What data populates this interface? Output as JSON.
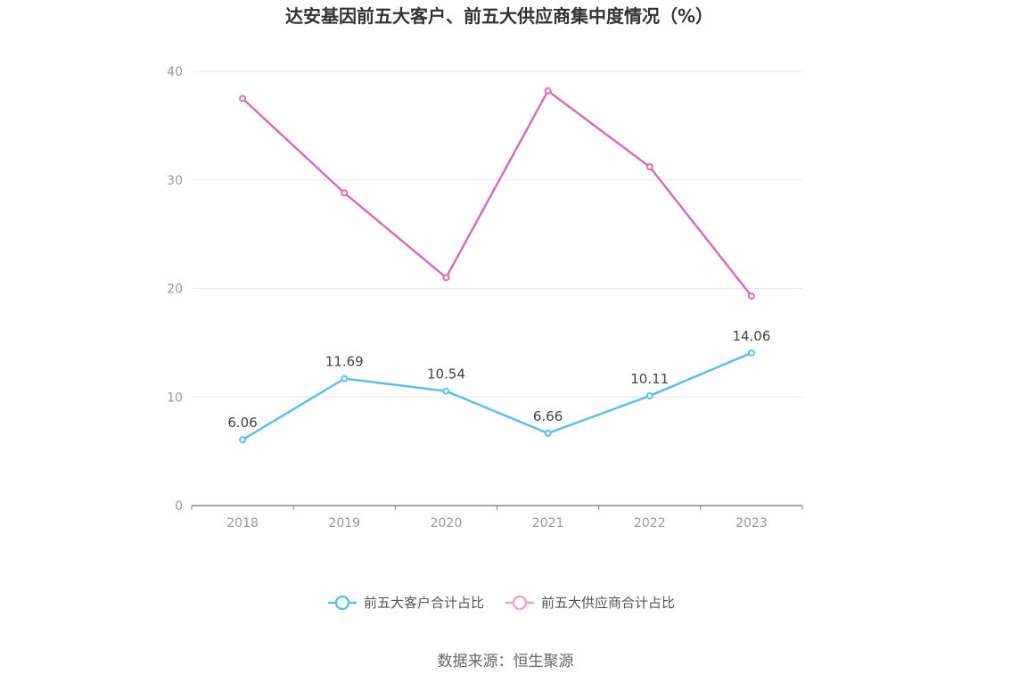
{
  "chart_data": {
    "type": "line",
    "title": "达安基因前五大客户、前五大供应商集中度情况（%）",
    "categories": [
      "2018",
      "2019",
      "2020",
      "2021",
      "2022",
      "2023"
    ],
    "ylim": [
      0,
      40
    ],
    "yticks": [
      "0",
      "10",
      "20",
      "30",
      "40"
    ],
    "grid": true,
    "legend_position": "bottom",
    "series": [
      {
        "name": "前五大客户合计占比",
        "values": [
          6.06,
          11.69,
          10.54,
          6.66,
          10.11,
          14.06
        ],
        "labels": [
          "6.06",
          "11.69",
          "10.54",
          "6.66",
          "10.11",
          "14.06"
        ],
        "color": "#5bc0eb"
      },
      {
        "name": "前五大供应商合计占比",
        "values": [
          37.5,
          28.8,
          21.0,
          38.2,
          31.2,
          19.3
        ],
        "color": "#d56fb4"
      }
    ]
  },
  "source": "数据来源：恒生聚源"
}
